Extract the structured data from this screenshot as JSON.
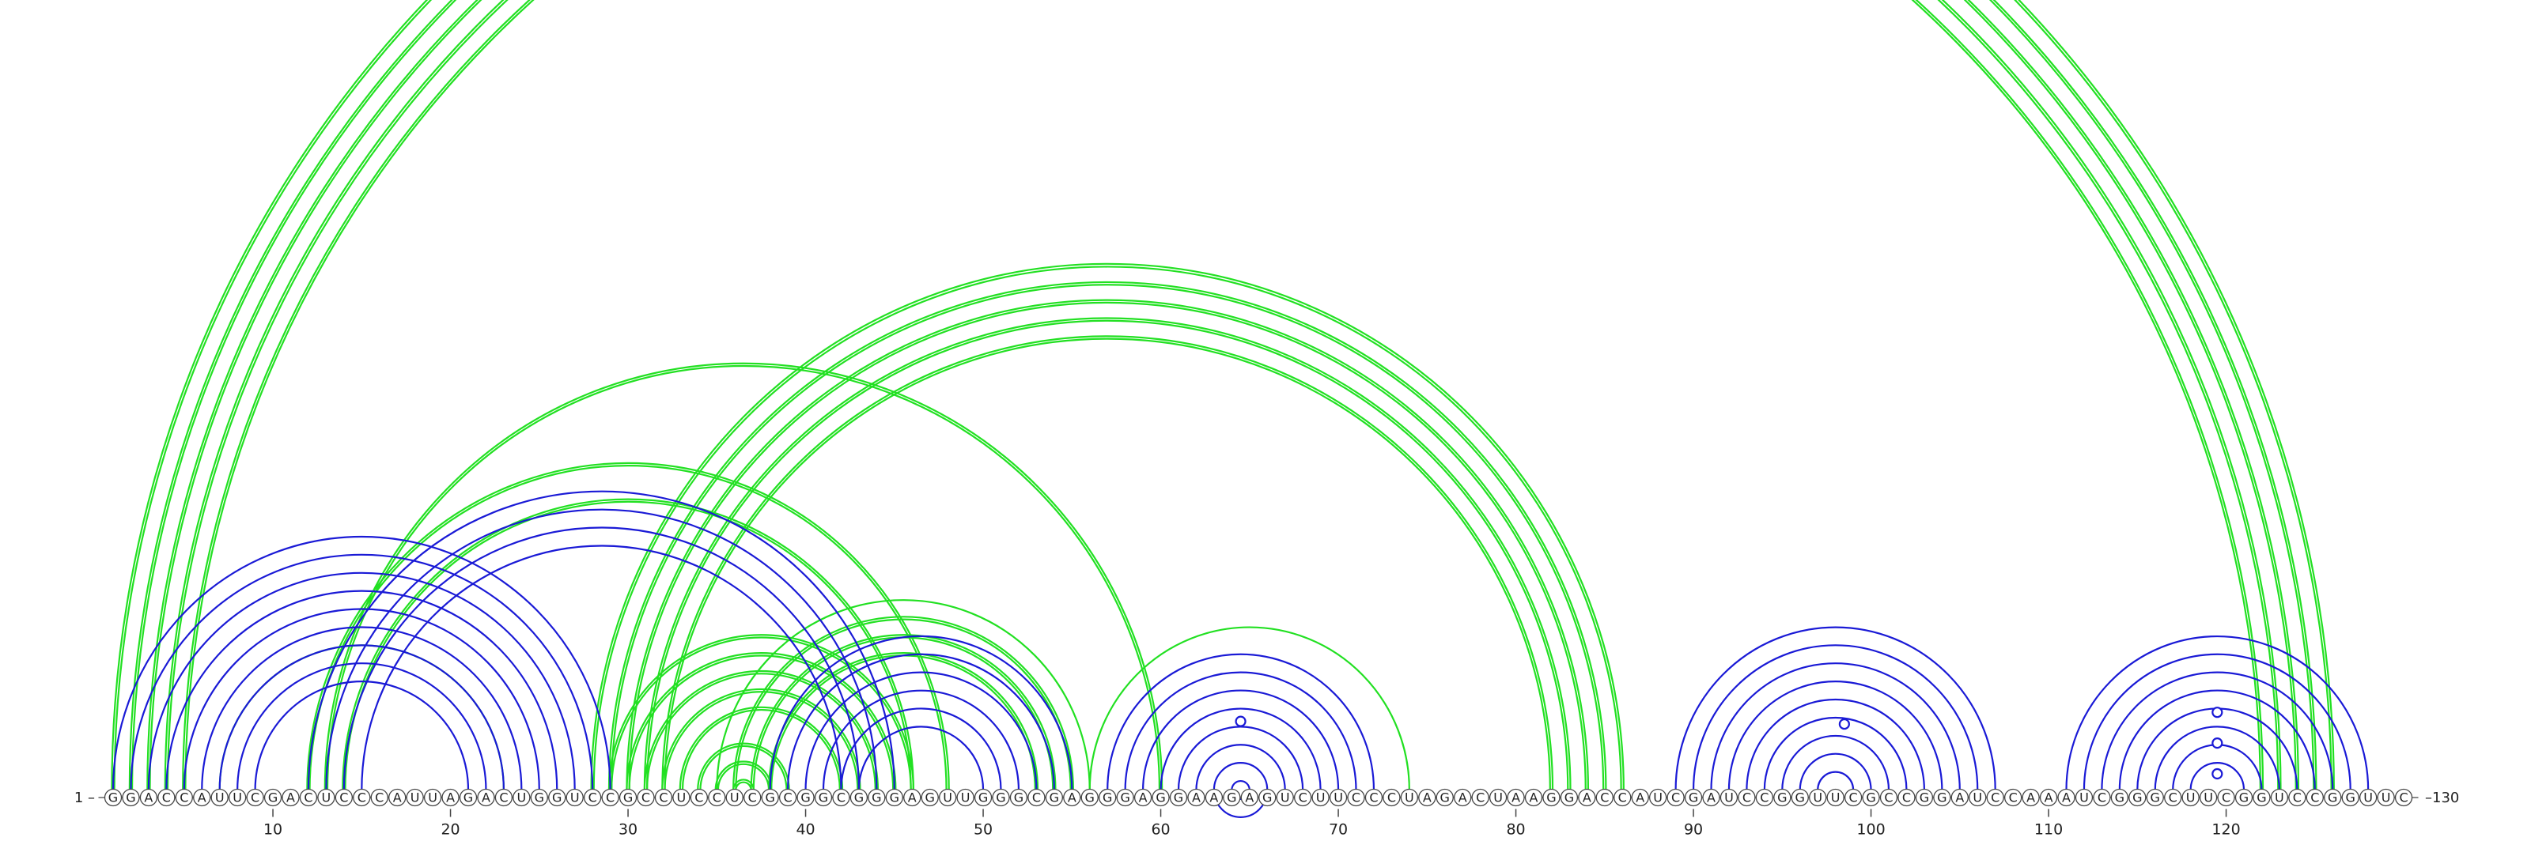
{
  "sequence": "GGACCAUUCGACUCCCAUUAGACUGGUCCGCCUCCUCGCGGCGGGAGUUGGGCGAGGGAGGAAGAGUCUUCCCUAGACUAAGGACCAUCGAUCCGGUUCGCCGGAUCCAAAUCGGGCUUCGGUCCGGUUC",
  "start_label": "1 –",
  "end_label": "–130",
  "ticks": [
    {
      "position": 10,
      "label": "10"
    },
    {
      "position": 20,
      "label": "20"
    },
    {
      "position": 30,
      "label": "30"
    },
    {
      "position": 40,
      "label": "40"
    },
    {
      "position": 50,
      "label": "50"
    },
    {
      "position": 60,
      "label": "60"
    },
    {
      "position": 70,
      "label": "70"
    },
    {
      "position": 80,
      "label": "80"
    },
    {
      "position": 90,
      "label": "90"
    },
    {
      "position": 100,
      "label": "100"
    },
    {
      "position": 110,
      "label": "110"
    },
    {
      "position": 120,
      "label": "120"
    }
  ],
  "colors": {
    "blue": "#1a1ad6",
    "green": "#22e022"
  },
  "arc_groups": [
    {
      "color": "green",
      "i": [
        1,
        2,
        3,
        4,
        5
      ],
      "j": [
        126,
        125,
        124,
        123,
        122
      ],
      "double": true
    },
    {
      "color": "green",
      "i": [
        28,
        29,
        30,
        31,
        32
      ],
      "j": [
        86,
        85,
        84,
        83,
        82
      ],
      "double": true
    },
    {
      "color": "green",
      "i": [
        13
      ],
      "j": [
        60
      ],
      "double": true
    },
    {
      "color": "green",
      "i": [
        12
      ],
      "j": [
        48
      ],
      "double": true
    },
    {
      "color": "green",
      "i": [
        14
      ],
      "j": [
        46
      ],
      "double": true
    },
    {
      "color": "green",
      "i": [
        7
      ],
      "j": [
        23
      ],
      "double": false
    },
    {
      "color": "green",
      "i": [
        29,
        30,
        31,
        32,
        33
      ],
      "j": [
        46,
        45,
        44,
        43,
        42
      ],
      "double": true
    },
    {
      "color": "green",
      "i": [
        34,
        35,
        36
      ],
      "j": [
        39,
        38,
        37
      ],
      "double": true
    },
    {
      "color": "green",
      "i": [
        35
      ],
      "j": [
        56
      ],
      "double": false
    },
    {
      "color": "green",
      "i": [
        36,
        37,
        38
      ],
      "j": [
        55,
        54,
        53
      ],
      "double": true
    },
    {
      "color": "green",
      "i": [
        56
      ],
      "j": [
        74
      ],
      "double": false
    },
    {
      "color": "blue",
      "i": [
        1,
        2,
        3,
        4,
        5,
        6,
        7,
        8,
        9
      ],
      "j": [
        29,
        28,
        27,
        26,
        25,
        24,
        23,
        22,
        21
      ],
      "double": false
    },
    {
      "color": "blue",
      "i": [
        12,
        13,
        14,
        15
      ],
      "j": [
        45,
        44,
        43,
        42
      ],
      "double": false
    },
    {
      "color": "blue",
      "i": [
        38,
        39,
        40,
        41,
        42,
        43
      ],
      "j": [
        55,
        54,
        53,
        52,
        51,
        50
      ],
      "double": false
    },
    {
      "color": "blue",
      "i": [
        57,
        58,
        59,
        60,
        61,
        62,
        63,
        64,
        65,
        66
      ],
      "j": [
        72,
        71,
        70,
        69,
        68,
        67,
        66,
        65,
        64,
        63
      ],
      "double": false
    },
    {
      "color": "blue",
      "i": [
        89,
        90,
        91,
        92,
        93,
        94,
        95,
        96,
        97
      ],
      "j": [
        107,
        106,
        105,
        104,
        103,
        102,
        101,
        100,
        99
      ],
      "double": false
    },
    {
      "color": "blue",
      "i": [
        111,
        112,
        113,
        114,
        115,
        116,
        117,
        118
      ],
      "j": [
        128,
        127,
        126,
        125,
        124,
        123,
        122,
        121
      ],
      "double": false
    }
  ],
  "markers": [
    {
      "position": 64.5,
      "level": 0.5
    },
    {
      "position": 98.5,
      "level": 0.4
    },
    {
      "position": 119.5,
      "level": 0.5
    },
    {
      "position": 119.5,
      "level": 0.3
    },
    {
      "position": 119.5,
      "level": 0.1
    }
  ]
}
